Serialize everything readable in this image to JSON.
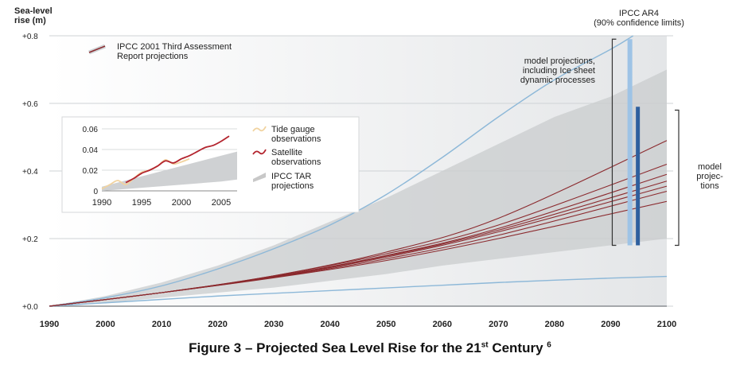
{
  "chart_data": {
    "type": "line",
    "ylabel": "Sea-level\nrise (m)",
    "x_ticks": [
      1990,
      2000,
      2010,
      2020,
      2030,
      2040,
      2050,
      2060,
      2070,
      2080,
      2090,
      2100
    ],
    "y_ticks": [
      "+0.0",
      "+0.2",
      "+0.4",
      "+0.6",
      "+0.8"
    ],
    "xlim": [
      1990,
      2100
    ],
    "ylim": [
      0,
      0.8
    ],
    "grid": true,
    "legend_main": "IPCC 2001 Third Assessment\nReport projections",
    "tar_envelope": {
      "x": [
        1990,
        2000,
        2010,
        2020,
        2030,
        2040,
        2050,
        2060,
        2070,
        2080,
        2090,
        2100
      ],
      "upper": [
        0,
        0.03,
        0.07,
        0.12,
        0.18,
        0.25,
        0.32,
        0.4,
        0.48,
        0.56,
        0.62,
        0.7
      ],
      "lower": [
        0,
        0.01,
        0.025,
        0.04,
        0.055,
        0.075,
        0.095,
        0.12,
        0.14,
        0.16,
        0.18,
        0.2
      ]
    },
    "outer_lines": [
      {
        "x": [
          1990,
          2000,
          2010,
          2020,
          2030,
          2040,
          2050,
          2060,
          2070,
          2080,
          2090,
          2094
        ],
        "y": [
          0,
          0.025,
          0.06,
          0.11,
          0.17,
          0.24,
          0.33,
          0.44,
          0.56,
          0.67,
          0.76,
          0.8
        ]
      },
      {
        "x": [
          1990,
          2000,
          2010,
          2020,
          2030,
          2040,
          2050,
          2060,
          2070,
          2080,
          2090,
          2100
        ],
        "y": [
          0,
          0.01,
          0.02,
          0.03,
          0.038,
          0.046,
          0.054,
          0.062,
          0.07,
          0.077,
          0.083,
          0.088
        ]
      }
    ],
    "series": [
      {
        "x": [
          1990,
          2010,
          2030,
          2050,
          2070,
          2100
        ],
        "y": [
          0,
          0.04,
          0.09,
          0.16,
          0.26,
          0.49
        ]
      },
      {
        "x": [
          1990,
          2010,
          2030,
          2050,
          2070,
          2100
        ],
        "y": [
          0,
          0.04,
          0.09,
          0.155,
          0.24,
          0.42
        ]
      },
      {
        "x": [
          1990,
          2010,
          2030,
          2050,
          2070,
          2100
        ],
        "y": [
          0,
          0.04,
          0.088,
          0.15,
          0.23,
          0.39
        ]
      },
      {
        "x": [
          1990,
          2010,
          2030,
          2050,
          2070,
          2100
        ],
        "y": [
          0,
          0.04,
          0.087,
          0.148,
          0.225,
          0.37
        ]
      },
      {
        "x": [
          1990,
          2010,
          2030,
          2050,
          2070,
          2100
        ],
        "y": [
          0,
          0.04,
          0.086,
          0.145,
          0.22,
          0.355
        ]
      },
      {
        "x": [
          1990,
          2010,
          2030,
          2050,
          2070,
          2100
        ],
        "y": [
          0,
          0.04,
          0.085,
          0.14,
          0.21,
          0.34
        ]
      },
      {
        "x": [
          1990,
          2010,
          2030,
          2050,
          2070,
          2100
        ],
        "y": [
          0,
          0.04,
          0.084,
          0.135,
          0.2,
          0.31
        ]
      }
    ],
    "ar4_label": "IPCC AR4\n(90% confidence limits)",
    "ar4_bars": [
      {
        "low": 0.18,
        "high": 0.79,
        "color": "#9ec3e6"
      },
      {
        "low": 0.18,
        "high": 0.59,
        "color": "#2e5f9e"
      }
    ],
    "annot_ice": "model projections,\nincluding Ice sheet\ndynamic processes",
    "annot_model": "model\nprojec-\ntions",
    "inset": {
      "type": "line",
      "x_ticks": [
        1990,
        1995,
        2000,
        2005
      ],
      "y_ticks": [
        "0",
        "0.02",
        "0.04",
        "0.06"
      ],
      "xlim": [
        1990,
        2007
      ],
      "ylim": [
        0,
        0.06
      ],
      "legend": [
        {
          "label": "Tide gauge\nobservations",
          "color": "#f1d3a0"
        },
        {
          "label": "Satellite\nobservations",
          "color": "#b3242e"
        },
        {
          "label": "IPCC TAR\nprojections",
          "color": "#c8c8c8"
        }
      ],
      "tide_gauge": {
        "x": [
          1990,
          1991,
          1992,
          1993,
          1994,
          1995,
          1996,
          1997,
          1998,
          1999,
          2000,
          2001
        ],
        "y": [
          0.002,
          0.006,
          0.01,
          0.006,
          0.012,
          0.018,
          0.02,
          0.024,
          0.03,
          0.026,
          0.028,
          0.031
        ]
      },
      "satellite": {
        "x": [
          1993,
          1994,
          1995,
          1996,
          1997,
          1998,
          1999,
          2000,
          2001,
          2002,
          2003,
          2004,
          2005,
          2006
        ],
        "y": [
          0.008,
          0.012,
          0.017,
          0.02,
          0.024,
          0.029,
          0.027,
          0.031,
          0.034,
          0.038,
          0.042,
          0.044,
          0.048,
          0.053
        ]
      },
      "tar_band": {
        "x": [
          1990,
          1995,
          2000,
          2005,
          2007
        ],
        "upper": [
          0.004,
          0.014,
          0.024,
          0.034,
          0.038
        ],
        "lower": [
          0.0,
          0.003,
          0.006,
          0.009,
          0.011
        ]
      }
    }
  },
  "caption": {
    "main": "Figure 3 – Projected Sea Level Rise for the 21",
    "sup1": "st",
    "end": " Century ",
    "sup2": "6"
  }
}
